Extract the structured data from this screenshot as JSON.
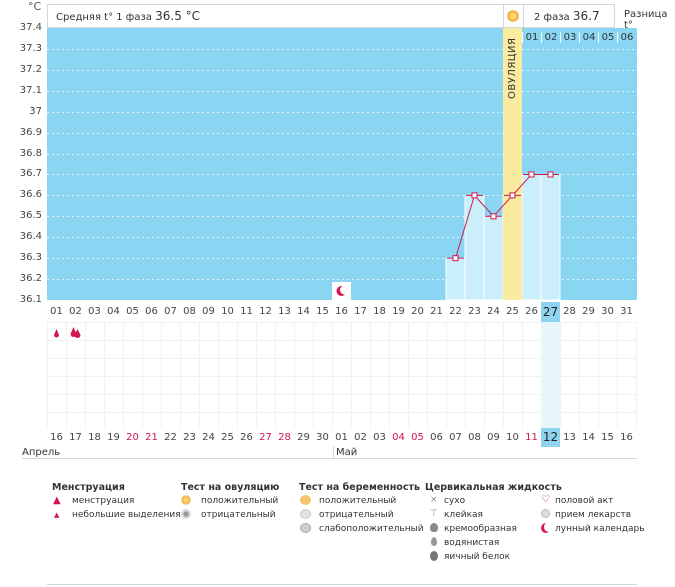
{
  "chart_data": {
    "type": "line",
    "yunit": "°C",
    "ylim": [
      36.1,
      37.4
    ],
    "yticks": [
      "37.4",
      "37.3",
      "37.2",
      "37.1",
      "37",
      "36.9",
      "36.8",
      "36.7",
      "36.6",
      "36.5",
      "36.4",
      "36.3",
      "36.2",
      "36.1"
    ],
    "cycle_days": [
      "01",
      "02",
      "03",
      "04",
      "05",
      "06",
      "07",
      "08",
      "09",
      "10",
      "11",
      "12",
      "13",
      "14",
      "15",
      "16",
      "17",
      "18",
      "19",
      "20",
      "21",
      "22",
      "23",
      "24",
      "25",
      "26",
      "27",
      "28",
      "29",
      "30",
      "31"
    ],
    "dates": [
      "16",
      "17",
      "18",
      "19",
      "20",
      "21",
      "22",
      "23",
      "24",
      "25",
      "26",
      "27",
      "28",
      "29",
      "30",
      "01",
      "02",
      "03",
      "04",
      "05",
      "06",
      "07",
      "08",
      "09",
      "10",
      "11",
      "12",
      "13",
      "14",
      "15",
      "16"
    ],
    "date_red": [
      4,
      5,
      11,
      12,
      18,
      19,
      25
    ],
    "today_index": 26,
    "months": [
      "Апрель",
      "Май"
    ],
    "temperature": [
      {
        "day": 22,
        "value": 36.3
      },
      {
        "day": 23,
        "value": 36.6
      },
      {
        "day": 24,
        "value": 36.5
      },
      {
        "day": 25,
        "value": 36.6
      },
      {
        "day": 26,
        "value": 36.7
      },
      {
        "day": 27,
        "value": 36.7
      }
    ],
    "ovulation_day": 25,
    "ovulation_label": "ОВУЛЯЦИЯ",
    "phase2_days": [
      "01",
      "02",
      "03",
      "04",
      "05",
      "06"
    ],
    "moon_day": 16,
    "menstruation_marks": [
      {
        "day": 1,
        "type": "light"
      },
      {
        "day": 2,
        "type": "menstruation"
      }
    ]
  },
  "header": {
    "phase1_label": "Средняя t° 1 фаза",
    "phase1_value": "36.5 °C",
    "phase2_label": "2 фаза",
    "phase2_value": "36.7 °C",
    "diff_label": "Разница t°"
  },
  "legend": {
    "menstruation": {
      "title": "Менструация",
      "items": [
        "менструация",
        "небольшие выделения"
      ]
    },
    "ovulation_test": {
      "title": "Тест на овуляцию",
      "items": [
        "положительный",
        "отрицательный"
      ]
    },
    "pregnancy_test": {
      "title": "Тест на беременность",
      "items": [
        "положительный",
        "отрицательный",
        "слабоположительный"
      ]
    },
    "cervical": {
      "title": "Цервикальная жидкость",
      "items": [
        "сухо",
        "клейкая",
        "кремообразная",
        "водянистая",
        "яичный белок"
      ]
    },
    "other": {
      "items": [
        "половой акт",
        "прием лекарств",
        "лунный календарь"
      ]
    }
  },
  "colors": {
    "plot": "#89d5f2",
    "bar": "#cbeefb",
    "ovulation": "#fbeba0",
    "line": "#d0184e",
    "today": "#8fd3f0"
  }
}
